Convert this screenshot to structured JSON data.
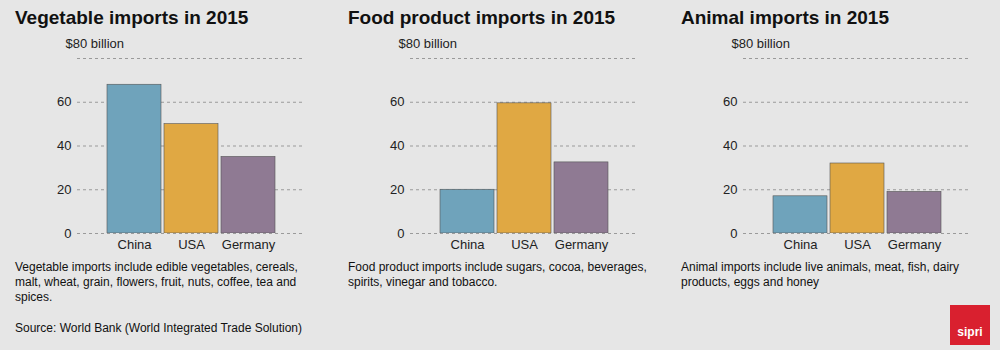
{
  "chart_data": [
    {
      "type": "bar",
      "title": "Vegetable imports in 2015",
      "categories": [
        "China",
        "USA",
        "Germany"
      ],
      "values": [
        68,
        50,
        35
      ],
      "colors": [
        "#6fa3bb",
        "#e0a843",
        "#8f7a93"
      ],
      "ylim": [
        0,
        80
      ],
      "yticks": [
        0,
        20,
        40,
        60,
        {
          "value": 80,
          "label": "$80 billion"
        }
      ],
      "grid": true,
      "annotations": [
        "Vegetable imports include edible vegetables, cereals, malt, wheat, grain, flowers, fruit, nuts, coffee, tea and spices."
      ]
    },
    {
      "type": "bar",
      "title": "Food product imports in 2015",
      "categories": [
        "China",
        "USA",
        "Germany"
      ],
      "values": [
        20,
        59.5,
        32.5
      ],
      "colors": [
        "#6fa3bb",
        "#e0a843",
        "#8f7a93"
      ],
      "ylim": [
        0,
        80
      ],
      "yticks": [
        0,
        20,
        40,
        60,
        {
          "value": 80,
          "label": "$80 billion"
        }
      ],
      "grid": true,
      "annotations": [
        "Food product imports include sugars, cocoa, beverages, spirits, vinegar and tobacco."
      ]
    },
    {
      "type": "bar",
      "title": "Animal imports in 2015",
      "categories": [
        "China",
        "USA",
        "Germany"
      ],
      "values": [
        17,
        32,
        19
      ],
      "colors": [
        "#6fa3bb",
        "#e0a843",
        "#8f7a93"
      ],
      "ylim": [
        0,
        80
      ],
      "yticks": [
        0,
        20,
        40,
        60,
        {
          "value": 80,
          "label": "$80 billion"
        }
      ],
      "grid": true,
      "annotations": [
        "Animal imports include live animals, meat, fish, dairy products, eggs and honey"
      ]
    }
  ],
  "source": "Source: World Bank (World Integrated Trade Solution)",
  "logo": "sipri"
}
